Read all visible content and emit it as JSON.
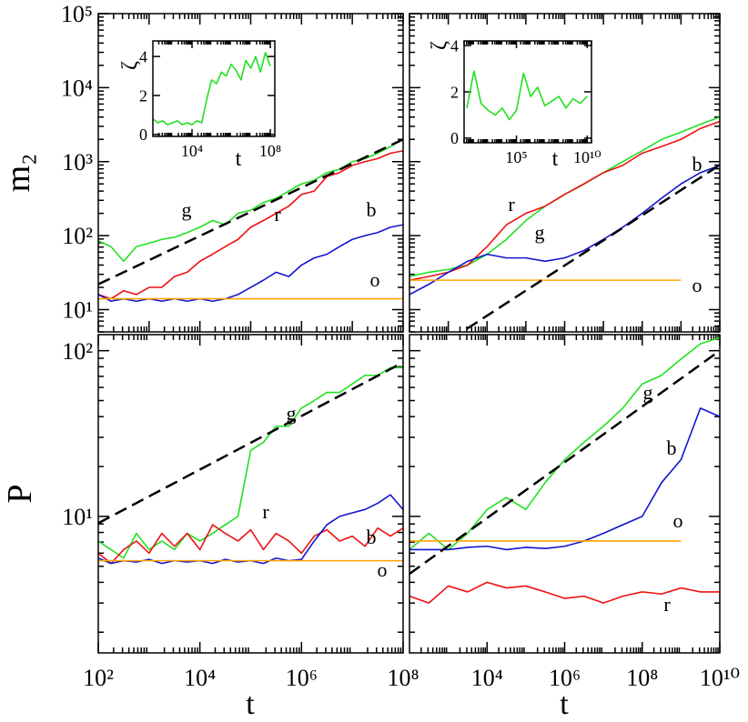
{
  "chart_data": [
    {
      "type": "line",
      "xscale": "log",
      "yscale": "log",
      "ylabel": "m₂",
      "xlim": [
        100,
        100000000
      ],
      "ylim": [
        5,
        100000
      ],
      "yticks": [
        {
          "value": 10,
          "label": "10¹"
        },
        {
          "value": 100,
          "label": "10²"
        },
        {
          "value": 1000,
          "label": "10³"
        },
        {
          "value": 10000,
          "label": "10⁴"
        },
        {
          "value": 100000,
          "label": "10⁵"
        }
      ],
      "x": [
        100,
        178,
        316,
        562,
        1000,
        1780,
        3160,
        5620,
        10000,
        17800,
        31600,
        56200,
        100000,
        178000,
        316000,
        562000,
        1000000,
        1780000,
        3160000,
        5620000,
        10000000,
        17800000,
        31600000,
        56200000,
        100000000
      ],
      "series": [
        {
          "name": "g",
          "color": "#22e022",
          "values": [
            85,
            71,
            45,
            71,
            79,
            89,
            95,
            110,
            130,
            160,
            140,
            200,
            220,
            280,
            320,
            400,
            500,
            560,
            710,
            790,
            1000,
            1100,
            1300,
            1600,
            2000
          ]
        },
        {
          "name": "r",
          "color": "#ee1111",
          "values": [
            16,
            14,
            18,
            16,
            20,
            20,
            28,
            32,
            45,
            56,
            71,
            89,
            130,
            160,
            200,
            250,
            360,
            400,
            630,
            710,
            890,
            1000,
            1100,
            1300,
            1400
          ]
        },
        {
          "name": "b",
          "color": "#1414d0",
          "values": [
            16,
            13,
            14,
            13,
            14,
            13,
            14,
            13,
            14,
            13,
            14,
            16,
            20,
            25,
            32,
            28,
            40,
            50,
            56,
            71,
            89,
            100,
            110,
            130,
            140
          ]
        },
        {
          "name": "o",
          "color": "#ffa500",
          "x": [
            100,
            100000000
          ],
          "values": [
            14,
            14
          ]
        },
        {
          "color": "#000000",
          "dash": true,
          "x": [
            100,
            100000000
          ],
          "values": [
            22,
            2000
          ]
        }
      ]
    },
    {
      "type": "line",
      "xscale": "log",
      "yscale": "log",
      "xlim": [
        100,
        10000000000
      ],
      "ylim": [
        5,
        100000
      ],
      "x": [
        100,
        316,
        1000,
        3160,
        10000,
        31600,
        100000,
        316000,
        1000000,
        3160000,
        10000000,
        31600000,
        100000000,
        316000000,
        1000000000,
        3160000000,
        10000000000
      ],
      "series": [
        {
          "name": "g",
          "color": "#22e022",
          "values": [
            28,
            32,
            35,
            40,
            56,
            89,
            160,
            250,
            360,
            500,
            710,
            1000,
            1400,
            2000,
            2500,
            3200,
            4000
          ]
        },
        {
          "name": "r",
          "color": "#ee1111",
          "values": [
            25,
            28,
            32,
            40,
            71,
            140,
            200,
            250,
            360,
            500,
            710,
            890,
            1300,
            1600,
            2000,
            2800,
            3500
          ]
        },
        {
          "name": "b",
          "color": "#1414d0",
          "values": [
            16,
            22,
            32,
            45,
            56,
            50,
            50,
            45,
            50,
            63,
            89,
            130,
            200,
            320,
            500,
            710,
            890
          ]
        },
        {
          "name": "o",
          "color": "#ffa500",
          "x": [
            100,
            1000000000
          ],
          "values": [
            25,
            25
          ]
        },
        {
          "color": "#000000",
          "dash": true,
          "x": [
            3000,
            10000000000
          ],
          "values": [
            5.5,
            900
          ]
        }
      ]
    },
    {
      "type": "line",
      "xscale": "log",
      "yscale": "log",
      "ylabel": "P",
      "xlabel": "t",
      "xlim": [
        100,
        100000000
      ],
      "ylim": [
        1.5,
        125
      ],
      "xticks": [
        {
          "value": 100,
          "label": "10²"
        },
        {
          "value": 10000,
          "label": "10⁴"
        },
        {
          "value": 1000000,
          "label": "10⁶"
        },
        {
          "value": 100000000,
          "label": "10⁸"
        }
      ],
      "yticks": [
        {
          "value": 10,
          "label": "10¹"
        },
        {
          "value": 100,
          "label": "10²"
        }
      ],
      "x": [
        100,
        178,
        316,
        562,
        1000,
        1780,
        3160,
        5620,
        10000,
        17800,
        31600,
        56200,
        100000,
        178000,
        316000,
        562000,
        1000000,
        1780000,
        3160000,
        5620000,
        10000000,
        17800000,
        31600000,
        56200000,
        100000000
      ],
      "series": [
        {
          "name": "g",
          "color": "#22e022",
          "values": [
            7.1,
            6.3,
            5.6,
            7.9,
            6.3,
            7.1,
            6.3,
            7.9,
            7.1,
            7.9,
            8.9,
            10,
            25,
            28,
            35,
            35,
            45,
            50,
            56,
            56,
            63,
            71,
            71,
            79,
            79
          ]
        },
        {
          "name": "r",
          "color": "#ee1111",
          "values": [
            6.0,
            5.2,
            6.3,
            7.1,
            6.0,
            7.9,
            6.6,
            7.9,
            6.3,
            8.9,
            7.9,
            7.1,
            8.3,
            6.3,
            7.9,
            7.1,
            6.0,
            7.6,
            8.3,
            7.1,
            7.6,
            6.6,
            8.5,
            7.6,
            8.5
          ]
        },
        {
          "name": "b",
          "color": "#1414d0",
          "values": [
            5.6,
            5.2,
            5.4,
            5.3,
            5.5,
            5.2,
            5.4,
            5.3,
            5.4,
            5.2,
            5.5,
            5.3,
            5.4,
            5.2,
            5.6,
            5.4,
            5.5,
            7.1,
            8.9,
            10,
            10.5,
            11,
            12,
            13.5,
            11
          ]
        },
        {
          "name": "o",
          "color": "#ffa500",
          "x": [
            100,
            100000000
          ],
          "values": [
            5.4,
            5.4
          ]
        },
        {
          "color": "#000000",
          "dash": true,
          "x": [
            100,
            100000000
          ],
          "values": [
            9.1,
            85
          ]
        }
      ]
    },
    {
      "type": "line",
      "xscale": "log",
      "yscale": "log",
      "xlabel": "t",
      "xlim": [
        100,
        10000000000
      ],
      "ylim": [
        1.5,
        125
      ],
      "xticks": [
        {
          "value": 10000,
          "label": "10⁴"
        },
        {
          "value": 1000000,
          "label": "10⁶"
        },
        {
          "value": 100000000,
          "label": "10⁸"
        },
        {
          "value": 10000000000,
          "label": "10¹⁰"
        }
      ],
      "x": [
        100,
        316,
        1000,
        3160,
        10000,
        31600,
        100000,
        316000,
        1000000,
        3160000,
        10000000,
        31600000,
        100000000,
        316000000,
        1000000000,
        3160000000,
        10000000000
      ],
      "series": [
        {
          "name": "g",
          "color": "#22e022",
          "values": [
            6.3,
            7.9,
            6.3,
            7.9,
            11,
            13,
            11,
            16,
            22,
            28,
            35,
            45,
            63,
            71,
            89,
            110,
            120
          ]
        },
        {
          "name": "b",
          "color": "#1414d0",
          "values": [
            6.3,
            6.3,
            6.3,
            6.5,
            6.6,
            6.3,
            6.5,
            6.4,
            6.6,
            7.1,
            7.9,
            8.9,
            10,
            16,
            22,
            45,
            40
          ]
        },
        {
          "name": "o",
          "color": "#ffa500",
          "x": [
            100,
            1000000000
          ],
          "values": [
            7.1,
            7.1
          ]
        },
        {
          "name": "r",
          "color": "#ee1111",
          "values": [
            3.3,
            3.0,
            3.8,
            3.5,
            4.0,
            3.7,
            3.8,
            3.5,
            3.2,
            3.3,
            3.0,
            3.3,
            3.5,
            3.4,
            3.7,
            3.5,
            3.5
          ]
        },
        {
          "color": "#000000",
          "dash": true,
          "x": [
            100,
            10000000000
          ],
          "values": [
            4.5,
            100
          ]
        }
      ]
    },
    {
      "type": "line",
      "xscale": "log",
      "ylabel": "ζ",
      "xlabel": "t",
      "xlim": [
        100,
        170000000
      ],
      "ylim": [
        -0.1,
        4.8
      ],
      "xticks": [
        {
          "value": 10000,
          "label": "10⁴"
        },
        {
          "value": 100000000,
          "label": "10⁸"
        }
      ],
      "yticks": [
        0,
        2,
        4
      ],
      "x": [
        100,
        178,
        316,
        562,
        1000,
        1780,
        3160,
        5620,
        10000,
        17800,
        31600,
        56200,
        100000,
        178000,
        316000,
        562000,
        1000000,
        1780000,
        3160000,
        5620000,
        10000000,
        17800000,
        31600000,
        56200000,
        100000000
      ],
      "series": [
        {
          "color": "#22e022",
          "values": [
            0.8,
            0.6,
            0.7,
            0.5,
            0.6,
            0.7,
            0.5,
            0.6,
            0.5,
            0.7,
            0.6,
            1.8,
            2.8,
            2.6,
            3.2,
            3.0,
            3.6,
            3.3,
            2.8,
            3.8,
            3.4,
            4.0,
            3.2,
            4.2,
            3.5
          ]
        }
      ]
    },
    {
      "type": "line",
      "xscale": "log",
      "ylabel": "ζ",
      "xlabel": "t",
      "xlim": [
        20,
        20000000000
      ],
      "ylim": [
        -0.2,
        4.2
      ],
      "xticks": [
        {
          "value": 100000,
          "label": "10⁵"
        },
        {
          "value": 10000000000,
          "label": "10¹⁰"
        }
      ],
      "yticks": [
        0,
        2,
        4
      ],
      "x": [
        31.6,
        100,
        316,
        1000,
        3160,
        10000,
        31600,
        100000,
        316000,
        1000000,
        3160000,
        10000000,
        31600000,
        100000000,
        316000000,
        1000000000,
        3160000000,
        10000000000
      ],
      "series": [
        {
          "color": "#22e022",
          "values": [
            1.3,
            2.9,
            1.5,
            1.2,
            1.0,
            1.3,
            0.8,
            1.2,
            2.8,
            1.8,
            2.2,
            1.4,
            1.6,
            1.8,
            1.3,
            1.7,
            1.5,
            1.8
          ]
        }
      ]
    }
  ]
}
